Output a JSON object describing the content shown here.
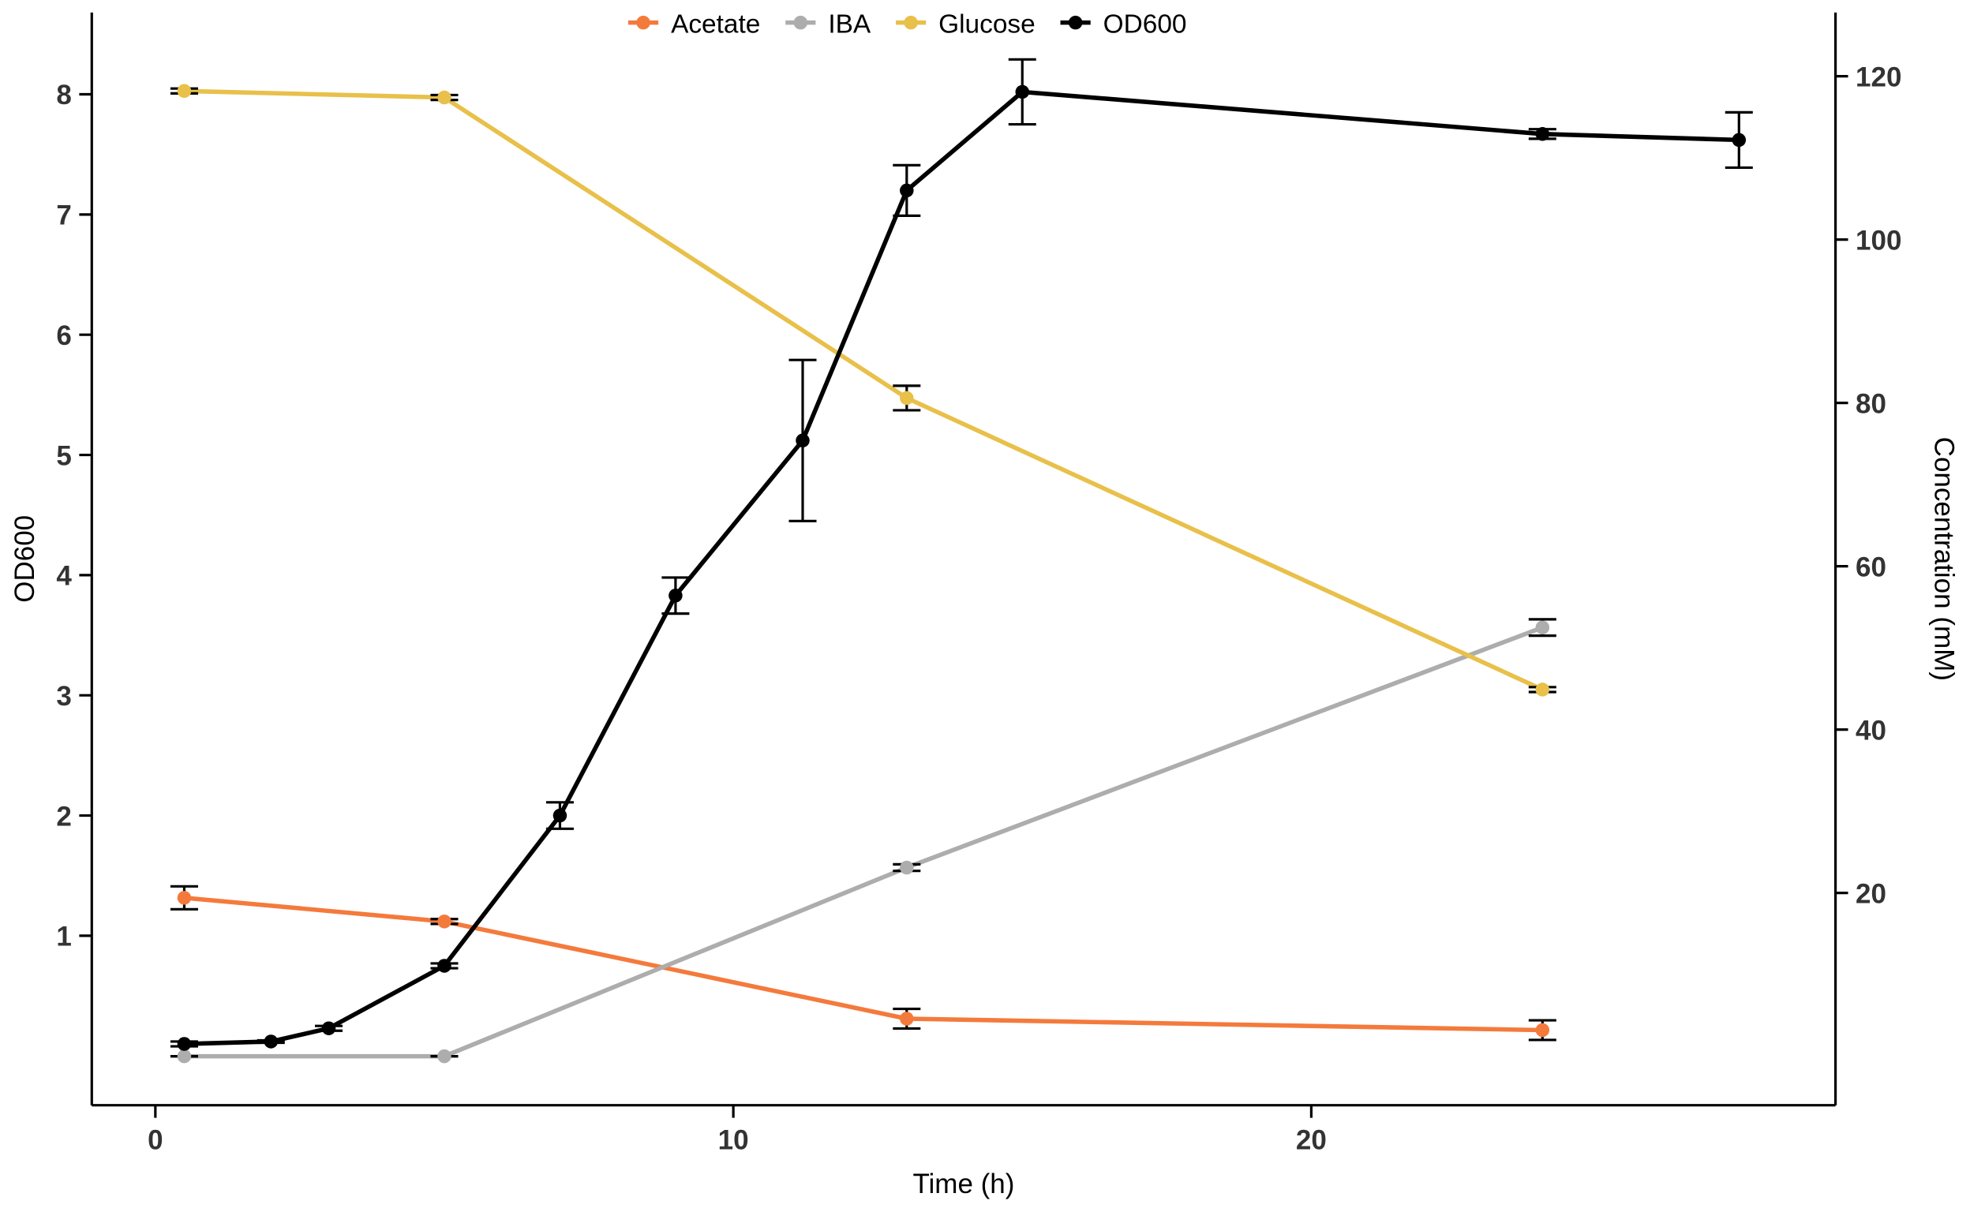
{
  "chart_data": {
    "type": "line",
    "xlabel": "Time (h)",
    "ylabel": "OD600",
    "y2label": "Concentration (mM)",
    "xlim": [
      -1.1,
      29.07
    ],
    "xticks": [
      0,
      10,
      20
    ],
    "ylim": [
      -0.41,
      8.68
    ],
    "yticks": [
      1,
      2,
      3,
      4,
      5,
      6,
      7,
      8
    ],
    "y2lim": [
      -6,
      127.8
    ],
    "y2ticks": [
      20,
      40,
      60,
      80,
      100,
      120
    ],
    "legend": "top",
    "series": [
      {
        "name": "Acetate",
        "color": "#f47a3c",
        "axis": "y2",
        "x": [
          0.5,
          5,
          13,
          24
        ],
        "values": [
          19.4,
          16.5,
          4.6,
          3.2
        ],
        "errors": [
          1.4,
          0.3,
          1.2,
          1.2
        ]
      },
      {
        "name": "IBA",
        "color": "#adadad",
        "axis": "y2",
        "x": [
          0.5,
          5,
          13,
          24
        ],
        "values": [
          0,
          0,
          23.1,
          52.5
        ],
        "errors": [
          0,
          0,
          0.4,
          1.0
        ]
      },
      {
        "name": "Glucose",
        "color": "#e8c04a",
        "axis": "y2",
        "x": [
          0.5,
          5,
          13,
          24
        ],
        "values": [
          118.2,
          117.4,
          80.6,
          44.9
        ],
        "errors": [
          0.3,
          0.3,
          1.5,
          0.3
        ]
      },
      {
        "name": "OD600",
        "color": "#000000",
        "axis": "y",
        "x": [
          0.5,
          2,
          3,
          5,
          7,
          9,
          11.2,
          13,
          15,
          24,
          27.4
        ],
        "values": [
          0.1,
          0.12,
          0.23,
          0.75,
          2.0,
          3.83,
          5.12,
          7.2,
          8.02,
          7.67,
          7.62
        ],
        "errors": [
          0.02,
          0.01,
          0.02,
          0.02,
          0.11,
          0.15,
          0.67,
          0.21,
          0.27,
          0.04,
          0.23
        ]
      }
    ]
  }
}
